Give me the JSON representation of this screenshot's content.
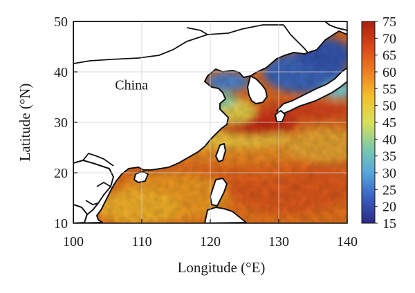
{
  "figure": {
    "x_axis": {
      "label": "Longitude (°E)",
      "min": 100,
      "max": 140,
      "ticks": [
        100,
        110,
        120,
        130,
        140
      ]
    },
    "y_axis": {
      "label": "Latitude (°N)",
      "min": 10,
      "max": 50,
      "ticks": [
        10,
        20,
        30,
        40,
        50
      ]
    },
    "grid": true,
    "map_label": {
      "text": "China",
      "lon": 108.5,
      "lat": 37.5
    },
    "colorbar": {
      "min": 15,
      "max": 75,
      "ticks": [
        15,
        20,
        25,
        30,
        35,
        40,
        45,
        50,
        55,
        60,
        65,
        70,
        75
      ],
      "placement": "right",
      "colors": [
        "#2a2a82",
        "#3a5fc0",
        "#57a6dc",
        "#7ec9a8",
        "#d8e05a",
        "#f2c02c",
        "#ec7f22",
        "#d8461a",
        "#a82010"
      ]
    },
    "colors": {
      "land": "#ffffff",
      "coastline": "#111111",
      "grid": "#cccccc",
      "frame": "#111111"
    }
  }
}
